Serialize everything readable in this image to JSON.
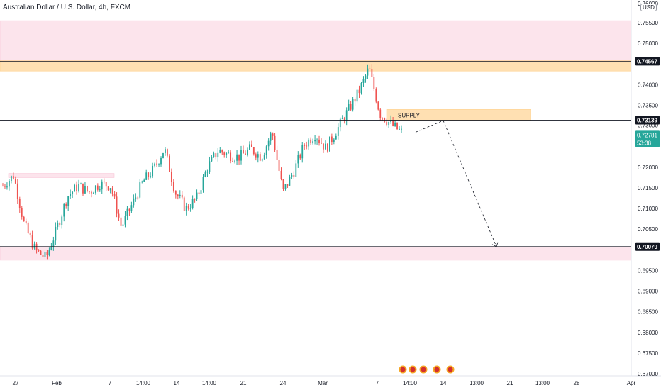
{
  "title": "Australian Dollar / U.S. Dollar, 4h, FXCM",
  "currency": "USD",
  "colors": {
    "up": "#26a69a",
    "down": "#ef5350",
    "zone_pink": "#fce4ec",
    "zone_orange": "#ffe0b2",
    "line": "#131722",
    "current_label": "#26a69a"
  },
  "chart_data": {
    "type": "candlestick",
    "ylim": [
      0.6695,
      0.7605
    ],
    "y_ticks": [
      "0.75500",
      "0.75000",
      "0.74000",
      "0.73500",
      "0.72000",
      "0.71500",
      "0.71000",
      "0.70500",
      "0.69500",
      "0.69000",
      "0.68500",
      "0.68000",
      "0.67500",
      "0.67000"
    ],
    "top_tick_partial": "0.76000",
    "x_ticks": [
      "27",
      "Feb",
      "7",
      "14:00",
      "14",
      "14:00",
      "21",
      "24",
      "Mar",
      "7",
      "14:00",
      "14",
      "13:00",
      "21",
      "13:00",
      "28",
      "Apr"
    ],
    "close_path": [
      0.7155,
      0.718,
      0.706,
      0.7,
      0.698,
      0.705,
      0.713,
      0.7155,
      0.714,
      0.716,
      0.7155,
      0.7055,
      0.711,
      0.7165,
      0.7195,
      0.7245,
      0.714,
      0.71,
      0.7125,
      0.72,
      0.724,
      0.723,
      0.7225,
      0.7245,
      0.7225,
      0.7285,
      0.714,
      0.719,
      0.7255,
      0.728,
      0.7245,
      0.729,
      0.7335,
      0.738,
      0.744,
      0.733,
      0.7305,
      0.7285
    ],
    "price_lines": [
      {
        "label": "0.74567",
        "value": 0.74567
      },
      {
        "label": "0.73139",
        "value": 0.73139
      },
      {
        "label": "0.70079",
        "value": 0.70079
      }
    ],
    "current_price": {
      "label": "0.72781",
      "countdown": "53:38",
      "value": 0.72781
    },
    "covered_label": "0.73000",
    "zones": [
      {
        "name": "upper-supply",
        "from": 0.7457,
        "to": 0.7555,
        "color": "pink"
      },
      {
        "name": "resistance",
        "from": 0.7433,
        "to": 0.7458,
        "color": "orange"
      },
      {
        "name": "demand",
        "from": 0.6975,
        "to": 0.7008,
        "color": "pink"
      },
      {
        "name": "supply",
        "from": 0.7313,
        "to": 0.734,
        "color": "orange"
      },
      {
        "name": "left-level",
        "from": 0.7175,
        "to": 0.7185,
        "color": "pink"
      }
    ],
    "annotations": [
      {
        "text": "SUPPLY"
      }
    ],
    "forecast_path": [
      0.7285,
      0.7313,
      0.7008
    ]
  }
}
